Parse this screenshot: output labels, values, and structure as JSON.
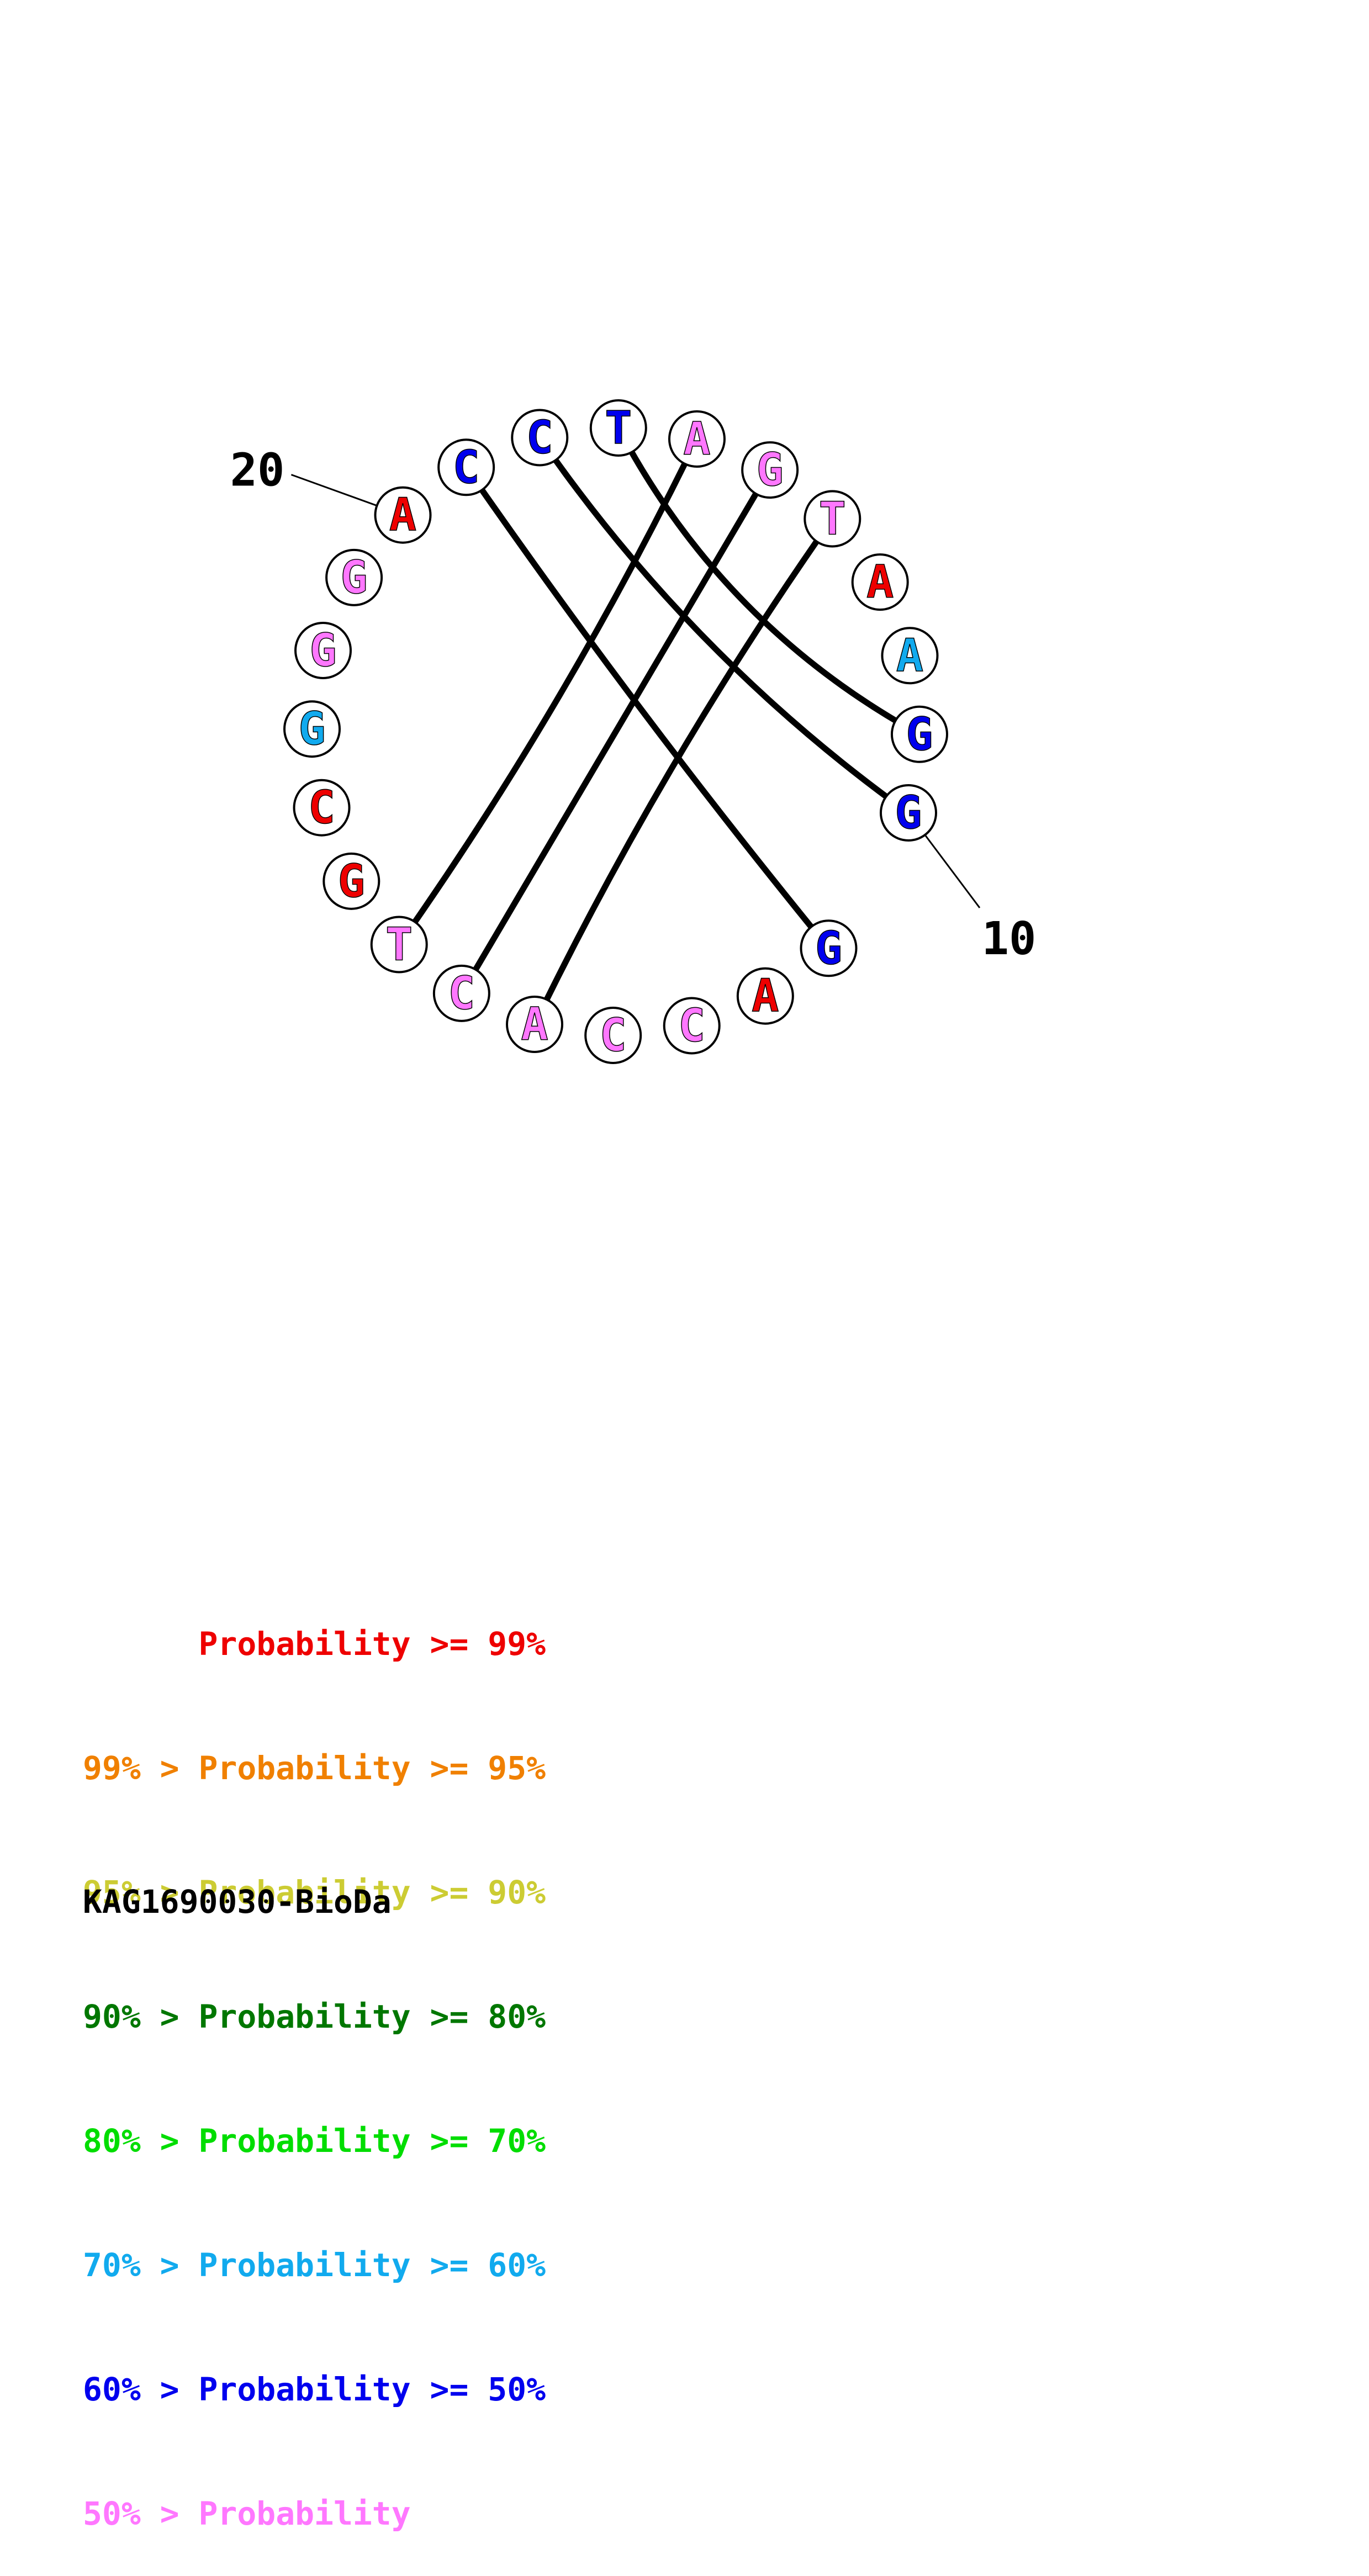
{
  "colors": {
    "p99": "#ee0000",
    "p95": "#f08000",
    "p90": "#cccc33",
    "p80": "#007700",
    "p70": "#00dd00",
    "p60": "#11aaee",
    "p50": "#0000ee",
    "plow": "#ff77ff"
  },
  "structure": {
    "nucleotides": [
      {
        "base": "G",
        "color": "p50"
      },
      {
        "base": "A",
        "color": "p99"
      },
      {
        "base": "C",
        "color": "plow"
      },
      {
        "base": "C",
        "color": "plow"
      },
      {
        "base": "A",
        "color": "plow"
      },
      {
        "base": "C",
        "color": "plow"
      },
      {
        "base": "T",
        "color": "plow"
      },
      {
        "base": "G",
        "color": "p99"
      },
      {
        "base": "C",
        "color": "p99"
      },
      {
        "base": "G",
        "color": "p60"
      },
      {
        "base": "G",
        "color": "plow"
      },
      {
        "base": "G",
        "color": "plow"
      },
      {
        "base": "A",
        "color": "p99"
      },
      {
        "base": "C",
        "color": "p50"
      },
      {
        "base": "C",
        "color": "p50"
      },
      {
        "base": "T",
        "color": "p50"
      },
      {
        "base": "A",
        "color": "plow"
      },
      {
        "base": "G",
        "color": "plow"
      },
      {
        "base": "T",
        "color": "plow"
      },
      {
        "base": "A",
        "color": "p99"
      },
      {
        "base": "A",
        "color": "p60"
      },
      {
        "base": "G",
        "color": "p50"
      },
      {
        "base": "G",
        "color": "p50"
      }
    ],
    "pairs": [
      [
        0,
        13
      ],
      [
        22,
        14
      ],
      [
        21,
        15
      ],
      [
        6,
        16
      ],
      [
        5,
        17
      ],
      [
        4,
        18
      ]
    ],
    "ticks": [
      {
        "nucleotide_index": 22,
        "label": "10"
      },
      {
        "nucleotide_index": 12,
        "label": "20"
      }
    ]
  },
  "legend": [
    {
      "text": "      Probability >= 99%",
      "color": "p99"
    },
    {
      "text": "99% > Probability >= 95%",
      "color": "p95"
    },
    {
      "text": "95% > Probability >= 90%",
      "color": "p90"
    },
    {
      "text": "90% > Probability >= 80%",
      "color": "p80"
    },
    {
      "text": "80% > Probability >= 70%",
      "color": "p70"
    },
    {
      "text": "70% > Probability >= 60%",
      "color": "p60"
    },
    {
      "text": "60% > Probability >= 50%",
      "color": "p50"
    },
    {
      "text": "50% > Probability",
      "color": "plow"
    }
  ],
  "sequence_name": "KAG1690030-BioDa"
}
